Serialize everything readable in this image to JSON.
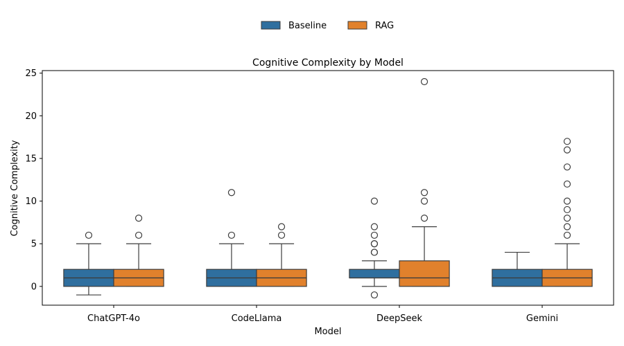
{
  "chart_data": {
    "type": "box",
    "title": "Cognitive Complexity by Model",
    "xlabel": "Model",
    "ylabel": "Cognitive Complexity",
    "ylim": [
      -2.2,
      25.3
    ],
    "yticks": [
      0,
      5,
      10,
      15,
      20,
      25
    ],
    "categories": [
      "ChatGPT-4o",
      "CodeLlama",
      "DeepSeek",
      "Gemini"
    ],
    "legend_position": "top-center",
    "series": [
      {
        "name": "Baseline",
        "color": "#2f6f9f",
        "boxes": [
          {
            "whisker_low": -1,
            "q1": 0,
            "median": 1,
            "q3": 2,
            "whisker_high": 5,
            "outliers": [
              6
            ]
          },
          {
            "whisker_low": 0,
            "q1": 0,
            "median": 1,
            "q3": 2,
            "whisker_high": 5,
            "outliers": [
              6,
              11
            ]
          },
          {
            "whisker_low": 0,
            "q1": 1,
            "median": 1,
            "q3": 2,
            "whisker_high": 3,
            "outliers": [
              -1,
              4,
              4,
              5,
              5,
              6,
              7,
              10
            ]
          },
          {
            "whisker_low": 0,
            "q1": 0,
            "median": 1,
            "q3": 2,
            "whisker_high": 4,
            "outliers": []
          }
        ]
      },
      {
        "name": "RAG",
        "color": "#e1812c",
        "boxes": [
          {
            "whisker_low": 0,
            "q1": 0,
            "median": 1,
            "q3": 2,
            "whisker_high": 5,
            "outliers": [
              6,
              8
            ]
          },
          {
            "whisker_low": 0,
            "q1": 0,
            "median": 1,
            "q3": 2,
            "whisker_high": 5,
            "outliers": [
              6,
              7
            ]
          },
          {
            "whisker_low": 0,
            "q1": 0,
            "median": 1,
            "q3": 3,
            "whisker_high": 7,
            "outliers": [
              8,
              10,
              11,
              24
            ]
          },
          {
            "whisker_low": 0,
            "q1": 0,
            "median": 1,
            "q3": 2,
            "whisker_high": 5,
            "outliers": [
              6,
              7,
              8,
              9,
              10,
              12,
              14,
              16,
              17
            ]
          }
        ]
      }
    ]
  }
}
